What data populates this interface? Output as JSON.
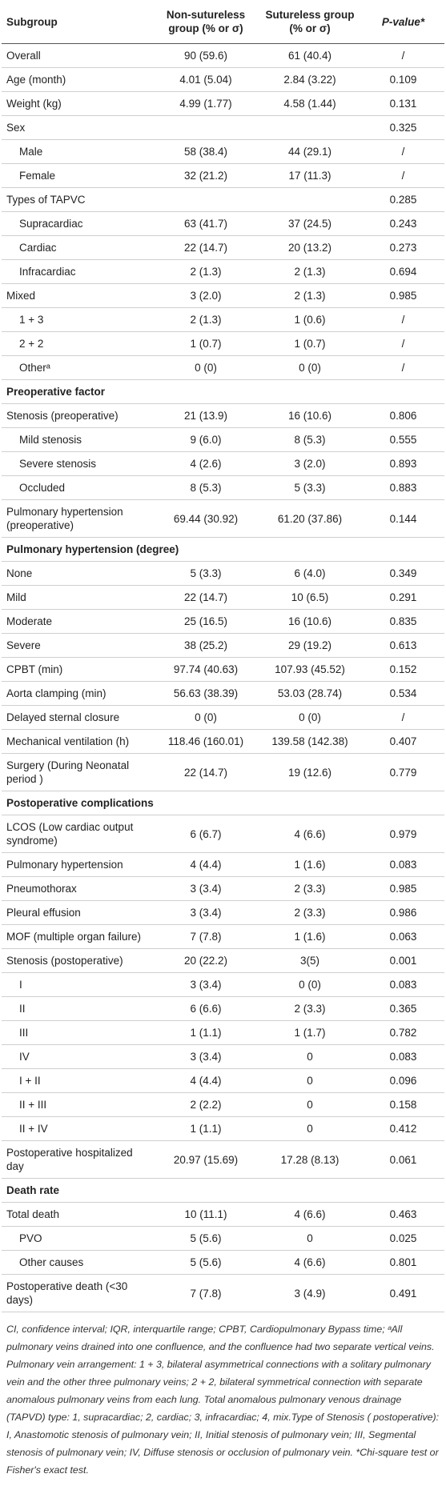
{
  "table": {
    "header": [
      "Subgroup",
      "Non-sutureless group (% or σ)",
      "Sutureless group (% or σ)",
      "P-value*"
    ],
    "rows": [
      [
        "Overall",
        "90 (59.6)",
        "61 (40.4)",
        "/"
      ],
      [
        "Age (month)",
        "4.01 (5.04)",
        "2.84 (3.22)",
        "0.109"
      ],
      [
        "Weight (kg)",
        "4.99 (1.77)",
        "4.58 (1.44)",
        "0.131"
      ],
      [
        "Sex",
        null,
        null,
        "0.325"
      ],
      [
        "Male",
        "58 (38.4)",
        "44 (29.1)",
        "/"
      ],
      [
        "Female",
        "32 (21.2)",
        "17 (11.3)",
        "/"
      ],
      [
        "Types of TAPVC",
        null,
        null,
        "0.285"
      ],
      [
        "Supracardiac",
        "63 (41.7)",
        "37 (24.5)",
        "0.243"
      ],
      [
        "Cardiac",
        "22 (14.7)",
        "20 (13.2)",
        "0.273"
      ],
      [
        "Infracardiac",
        "2 (1.3)",
        "2 (1.3)",
        "0.694"
      ],
      [
        "Mixed",
        "3 (2.0)",
        "2 (1.3)",
        "0.985"
      ],
      [
        "1 + 3",
        "2 (1.3)",
        "1 (0.6)",
        "/"
      ],
      [
        "2 + 2",
        "1 (0.7)",
        "1 (0.7)",
        "/"
      ],
      [
        "Otherᵃ",
        "0 (0)",
        "0 (0)",
        "/"
      ],
      [
        "Preoperative factor"
      ],
      [
        "Stenosis (preoperative)",
        "21 (13.9)",
        "16 (10.6)",
        "0.806"
      ],
      [
        "Mild stenosis",
        "9 (6.0)",
        "8 (5.3)",
        "0.555"
      ],
      [
        "Severe stenosis",
        "4 (2.6)",
        "3 (2.0)",
        "0.893"
      ],
      [
        "Occluded",
        "8 (5.3)",
        "5 (3.3)",
        "0.883"
      ],
      [
        "Pulmonary hypertension (preoperative)",
        "69.44 (30.92)",
        "61.20 (37.86)",
        "0.144"
      ],
      [
        "Pulmonary hypertension (degree)"
      ],
      [
        "None",
        "5 (3.3)",
        "6 (4.0)",
        "0.349"
      ],
      [
        "Mild",
        "22 (14.7)",
        "10 (6.5)",
        "0.291"
      ],
      [
        "Moderate",
        "25 (16.5)",
        "16 (10.6)",
        "0.835"
      ],
      [
        "Severe",
        "38 (25.2)",
        "29 (19.2)",
        "0.613"
      ],
      [
        "CPBT (min)",
        "97.74 (40.63)",
        "107.93 (45.52)",
        "0.152"
      ],
      [
        "Aorta clamping (min)",
        "56.63 (38.39)",
        "53.03 (28.74)",
        "0.534"
      ],
      [
        "Delayed sternal closure",
        "0 (0)",
        "0 (0)",
        "/"
      ],
      [
        "Mechanical ventilation (h)",
        "118.46 (160.01)",
        "139.58 (142.38)",
        "0.407"
      ],
      [
        "Surgery (During Neonatal period )",
        "22 (14.7)",
        "19 (12.6)",
        "0.779"
      ],
      [
        "Postoperative complications"
      ],
      [
        "LCOS (Low cardiac output syndrome)",
        "6 (6.7)",
        "4 (6.6)",
        "0.979"
      ],
      [
        "Pulmonary hypertension",
        "4 (4.4)",
        "1 (1.6)",
        "0.083"
      ],
      [
        "Pneumothorax",
        "3 (3.4)",
        "2 (3.3)",
        "0.985"
      ],
      [
        "Pleural effusion",
        "3 (3.4)",
        "2 (3.3)",
        "0.986"
      ],
      [
        "MOF (multiple organ failure)",
        "7 (7.8)",
        "1 (1.6)",
        "0.063"
      ],
      [
        "Stenosis (postoperative)",
        "20 (22.2)",
        "3(5)",
        "0.001"
      ],
      [
        "I",
        "3 (3.4)",
        "0 (0)",
        "0.083"
      ],
      [
        "II",
        "6 (6.6)",
        "2 (3.3)",
        "0.365"
      ],
      [
        "III",
        "1 (1.1)",
        "1 (1.7)",
        "0.782"
      ],
      [
        "IV",
        "3 (3.4)",
        "0",
        "0.083"
      ],
      [
        "I + II",
        "4 (4.4)",
        "0",
        "0.096"
      ],
      [
        "II + III",
        "2 (2.2)",
        "0",
        "0.158"
      ],
      [
        "II + IV",
        "1 (1.1)",
        "0",
        "0.412"
      ],
      [
        "Postoperative hospitalized day",
        "20.97 (15.69)",
        "17.28 (8.13)",
        "0.061"
      ],
      [
        "Death rate"
      ],
      [
        "Total death",
        "10 (11.1)",
        "4 (6.6)",
        "0.463"
      ],
      [
        "PVO",
        "5 (5.6)",
        "0",
        "0.025"
      ],
      [
        "Other causes",
        "5 (5.6)",
        "4 (6.6)",
        "0.801"
      ],
      [
        "Postoperative death (<30 days)",
        "7 (7.8)",
        "3 (4.9)",
        "0.491"
      ]
    ]
  },
  "footnote": "CI, confidence interval; IQR, interquartile range; CPBT, Cardiopulmonary Bypass time; ᵃAll pulmonary veins drained into one confluence, and the confluence had two separate vertical veins. Pulmonary vein arrangement: 1 + 3, bilateral asymmetrical connections with a solitary pulmonary vein and the other three pulmonary veins; 2 + 2, bilateral symmetrical connection with separate anomalous pulmonary veins from each lung. Total anomalous pulmonary venous drainage (TAPVD) type: 1, supracardiac; 2, cardiac; 3, infracardiac; 4, mix.Type of Stenosis ( postoperative): I, Anastomotic stenosis of pulmonary vein; II, Initial stenosis of pulmonary vein; III, Segmental stenosis of pulmonary vein; IV, Diffuse stenosis or occlusion of pulmonary vein. *Chi-square test or Fisher's exact test."
}
